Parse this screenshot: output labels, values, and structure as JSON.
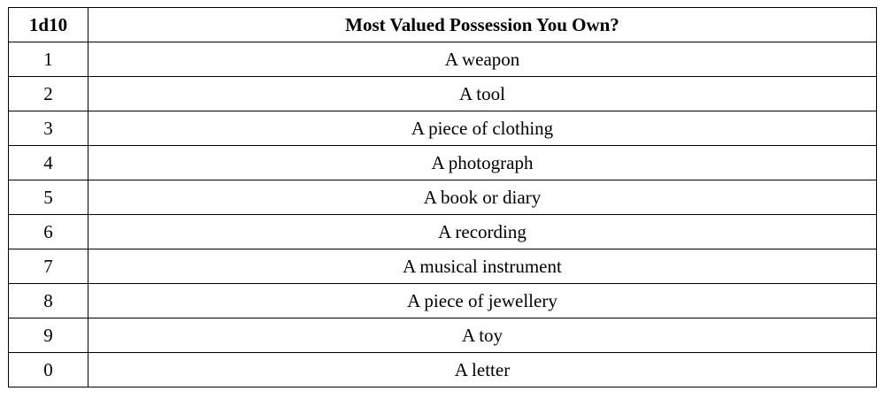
{
  "table": {
    "headers": [
      "1d10",
      "Most Valued Possession You Own?"
    ],
    "rows": [
      {
        "roll": "1",
        "result": "A weapon"
      },
      {
        "roll": "2",
        "result": "A tool"
      },
      {
        "roll": "3",
        "result": "A piece of clothing"
      },
      {
        "roll": "4",
        "result": "A photograph"
      },
      {
        "roll": "5",
        "result": "A book or diary"
      },
      {
        "roll": "6",
        "result": "A recording"
      },
      {
        "roll": "7",
        "result": "A musical instrument"
      },
      {
        "roll": "8",
        "result": "A piece of jewellery"
      },
      {
        "roll": "9",
        "result": "A toy"
      },
      {
        "roll": "0",
        "result": "A letter"
      }
    ]
  }
}
